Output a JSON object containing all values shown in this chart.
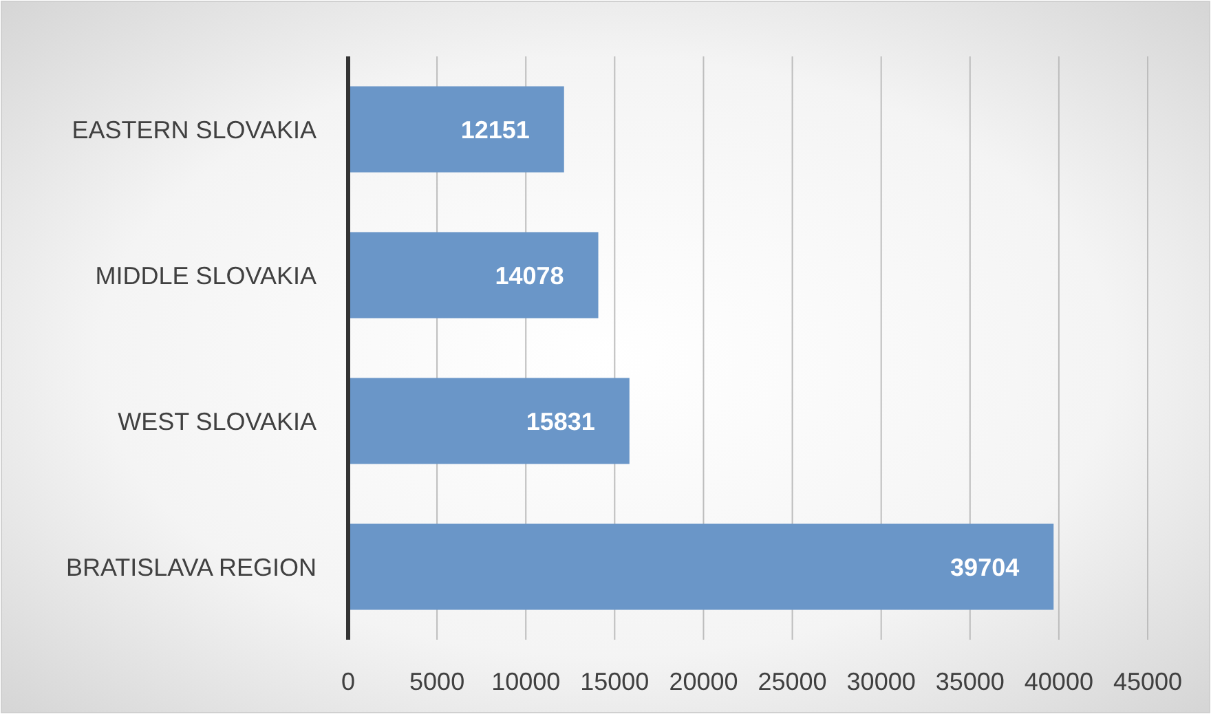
{
  "chart_data": {
    "type": "bar",
    "orientation": "horizontal",
    "categories": [
      "EASTERN SLOVAKIA",
      "MIDDLE SLOVAKIA",
      "WEST SLOVAKIA",
      "BRATISLAVA REGION"
    ],
    "values": [
      12151,
      14078,
      15831,
      39704
    ],
    "color": "#6a96c8",
    "data_labels": true,
    "grid": "x",
    "xlim": [
      0,
      45000
    ],
    "xticks": [
      0,
      5000,
      10000,
      15000,
      20000,
      25000,
      30000,
      35000,
      40000,
      45000
    ]
  }
}
